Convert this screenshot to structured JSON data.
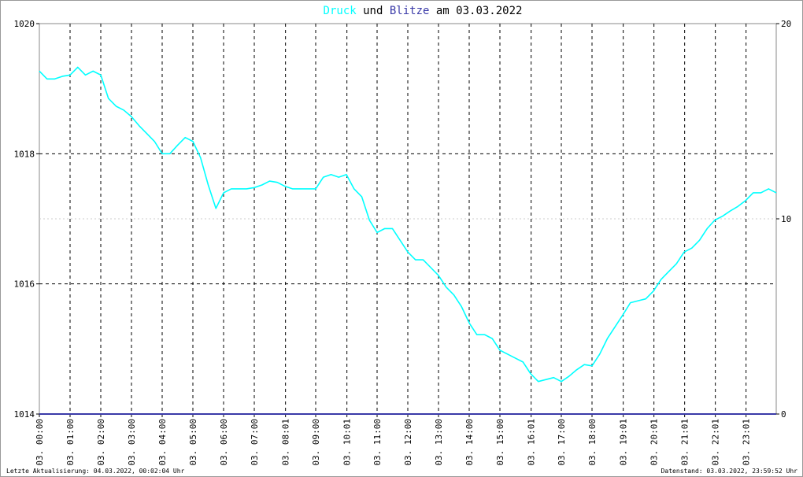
{
  "chart_data": {
    "type": "line",
    "title_words": [
      "und",
      "am 03.03.2022"
    ],
    "footer_left": "Letzte Aktualisierung: 04.03.2022, 00:02:04 Uhr",
    "footer_right": "Datenstand: 03.03.2022, 23:59:52 Uhr",
    "xlim": [
      0,
      24
    ],
    "xticks": [
      {
        "value": 0,
        "label": "03. 00:00"
      },
      {
        "value": 1,
        "label": "03. 01:00"
      },
      {
        "value": 2,
        "label": "03. 02:00"
      },
      {
        "value": 3,
        "label": "03. 03:00"
      },
      {
        "value": 4,
        "label": "03. 04:00"
      },
      {
        "value": 5,
        "label": "03. 05:00"
      },
      {
        "value": 6,
        "label": "03. 06:00"
      },
      {
        "value": 7,
        "label": "03. 07:00"
      },
      {
        "value": 8.017,
        "label": "03. 08:01"
      },
      {
        "value": 9,
        "label": "03. 09:00"
      },
      {
        "value": 10.017,
        "label": "03. 10:01"
      },
      {
        "value": 11,
        "label": "03. 11:00"
      },
      {
        "value": 12,
        "label": "03. 12:00"
      },
      {
        "value": 13,
        "label": "03. 13:00"
      },
      {
        "value": 14,
        "label": "03. 14:00"
      },
      {
        "value": 15,
        "label": "03. 15:00"
      },
      {
        "value": 16.017,
        "label": "03. 16:01"
      },
      {
        "value": 17,
        "label": "03. 17:00"
      },
      {
        "value": 18,
        "label": "03. 18:00"
      },
      {
        "value": 19.017,
        "label": "03. 19:01"
      },
      {
        "value": 20.017,
        "label": "03. 20:01"
      },
      {
        "value": 21.017,
        "label": "03. 21:01"
      },
      {
        "value": 22.017,
        "label": "03. 22:01"
      },
      {
        "value": 23.017,
        "label": "03. 23:01"
      }
    ],
    "ylim": [
      1014,
      1020
    ],
    "yticks": [
      1014,
      1016,
      1018,
      1020
    ],
    "y2lim": [
      0,
      20
    ],
    "y2ticks": [
      0,
      10,
      20
    ],
    "grid": true,
    "series": [
      {
        "name": "Druck",
        "color": "#00ffff",
        "x": [
          0,
          0.25,
          0.5,
          0.75,
          1,
          1.25,
          1.5,
          1.75,
          2,
          2.25,
          2.5,
          2.75,
          3,
          3.25,
          3.5,
          3.75,
          4,
          4.25,
          4.5,
          4.75,
          5,
          5.25,
          5.5,
          5.75,
          6,
          6.25,
          6.5,
          6.75,
          7,
          7.25,
          7.5,
          7.75,
          8,
          8.25,
          8.5,
          8.75,
          9,
          9.25,
          9.5,
          9.75,
          10,
          10.25,
          10.5,
          10.75,
          11,
          11.25,
          11.5,
          11.75,
          12,
          12.25,
          12.5,
          12.75,
          13,
          13.25,
          13.5,
          13.75,
          14,
          14.25,
          14.5,
          14.75,
          15,
          15.25,
          15.5,
          15.75,
          16,
          16.25,
          16.5,
          16.75,
          17,
          17.25,
          17.5,
          17.75,
          18,
          18.25,
          18.5,
          18.75,
          19,
          19.25,
          19.5,
          19.75,
          20,
          20.25,
          20.5,
          20.75,
          21,
          21.25,
          21.5,
          21.75,
          22,
          22.25,
          22.5,
          22.75,
          23,
          23.25,
          23.5,
          23.75,
          24
        ],
        "values": [
          1019.27,
          1019.15,
          1019.15,
          1019.19,
          1019.21,
          1019.33,
          1019.21,
          1019.27,
          1019.21,
          1018.85,
          1018.73,
          1018.67,
          1018.57,
          1018.43,
          1018.31,
          1018.19,
          1018.0,
          1018.0,
          1018.13,
          1018.25,
          1018.19,
          1017.94,
          1017.52,
          1017.16,
          1017.4,
          1017.46,
          1017.46,
          1017.46,
          1017.48,
          1017.52,
          1017.58,
          1017.56,
          1017.5,
          1017.46,
          1017.46,
          1017.46,
          1017.46,
          1017.64,
          1017.68,
          1017.64,
          1017.68,
          1017.46,
          1017.34,
          1016.98,
          1016.79,
          1016.85,
          1016.85,
          1016.67,
          1016.49,
          1016.37,
          1016.37,
          1016.25,
          1016.13,
          1015.95,
          1015.83,
          1015.65,
          1015.4,
          1015.22,
          1015.22,
          1015.16,
          1014.98,
          1014.92,
          1014.86,
          1014.8,
          1014.62,
          1014.5,
          1014.53,
          1014.56,
          1014.5,
          1014.58,
          1014.68,
          1014.76,
          1014.74,
          1014.92,
          1015.16,
          1015.34,
          1015.52,
          1015.71,
          1015.74,
          1015.77,
          1015.89,
          1016.07,
          1016.19,
          1016.31,
          1016.49,
          1016.55,
          1016.67,
          1016.85,
          1016.98,
          1017.04,
          1017.12,
          1017.19,
          1017.28,
          1017.4,
          1017.4,
          1017.46,
          1017.4
        ]
      },
      {
        "name": "Blitze",
        "color": "#3a3aa8",
        "axis": "y2",
        "x": [
          0,
          24
        ],
        "values": [
          0,
          0
        ]
      }
    ]
  }
}
